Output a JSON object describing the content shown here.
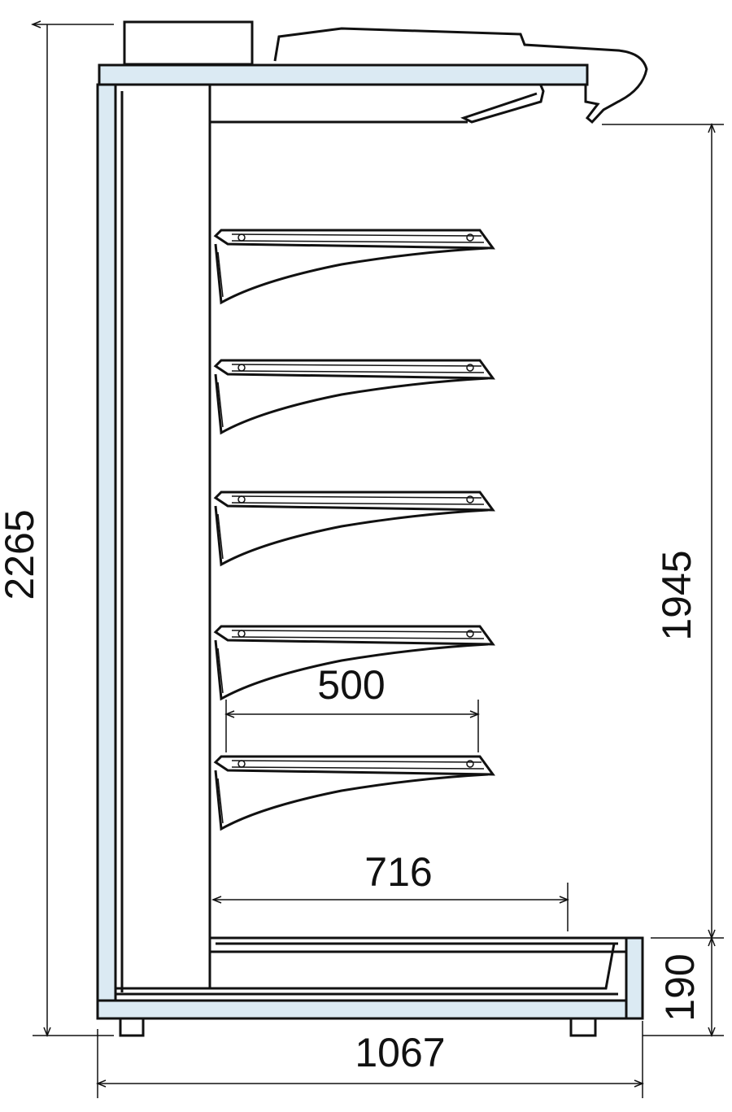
{
  "dimensions": {
    "total_height": "2265",
    "shelf_height": "1945",
    "shelf_depth": "500",
    "base_depth": "716",
    "base_height": "190",
    "total_depth": "1067"
  }
}
